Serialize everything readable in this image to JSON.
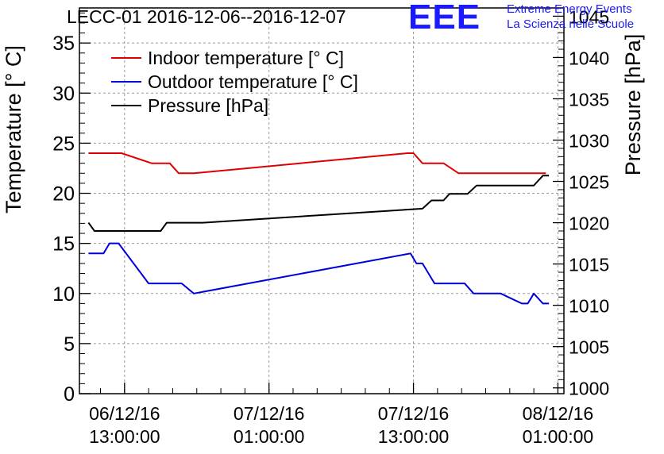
{
  "header": {
    "title": "LECC-01 2016-12-06--2016-12-07",
    "logo_text": "EEE",
    "logo_line1": "Extreme Energy Events",
    "logo_line2": "La Scienza nelle Scuole"
  },
  "colors": {
    "indoor": "#e00000",
    "outdoor": "#0000dd",
    "pressure": "#000000",
    "grid": "#999999",
    "logo": "#1a1aff"
  },
  "chart_data": {
    "type": "line",
    "title": "LECC-01 2016-12-06--2016-12-07",
    "ylabel": "Temperature [° C]",
    "y2label": "Pressure [hPa]",
    "ylim": [
      0,
      38.5
    ],
    "y2lim": [
      999.3,
      1046
    ],
    "yticks": [
      0,
      5,
      10,
      15,
      20,
      25,
      30,
      35
    ],
    "y2ticks": [
      1000,
      1005,
      1010,
      1015,
      1020,
      1025,
      1030,
      1035,
      1040,
      1045
    ],
    "xlim": [
      "2016-12-06 09:15",
      "2016-12-08 01:30"
    ],
    "xticks": [
      {
        "x": "2016-12-06 13:00",
        "label": [
          "06/12/16",
          "13:00:00"
        ]
      },
      {
        "x": "2016-12-07 01:00",
        "label": [
          "07/12/16",
          "01:00:00"
        ]
      },
      {
        "x": "2016-12-07 13:00",
        "label": [
          "07/12/16",
          "13:00:00"
        ]
      },
      {
        "x": "2016-12-08 01:00",
        "label": [
          "08/12/16",
          "01:00:00"
        ]
      }
    ],
    "grid": true,
    "legend_position": "top-left",
    "series": [
      {
        "name": "Indoor temperature [° C]",
        "axis": "left",
        "color": "#e00000",
        "points": [
          [
            "2016-12-06 10:00",
            24
          ],
          [
            "2016-12-06 12:45",
            24
          ],
          [
            "2016-12-06 15:15",
            23
          ],
          [
            "2016-12-06 16:45",
            23
          ],
          [
            "2016-12-06 17:30",
            22
          ],
          [
            "2016-12-06 18:45",
            22
          ],
          [
            "2016-12-07 12:30",
            24
          ],
          [
            "2016-12-07 13:00",
            24
          ],
          [
            "2016-12-07 13:45",
            23
          ],
          [
            "2016-12-07 15:30",
            23
          ],
          [
            "2016-12-07 16:45",
            22
          ],
          [
            "2016-12-08 00:00",
            22
          ]
        ]
      },
      {
        "name": "Outdoor temperature [° C]",
        "axis": "left",
        "color": "#0000dd",
        "points": [
          [
            "2016-12-06 10:00",
            14
          ],
          [
            "2016-12-06 11:15",
            14
          ],
          [
            "2016-12-06 11:45",
            15
          ],
          [
            "2016-12-06 12:30",
            15
          ],
          [
            "2016-12-06 15:00",
            11
          ],
          [
            "2016-12-06 17:45",
            11
          ],
          [
            "2016-12-06 18:45",
            10
          ],
          [
            "2016-12-07 12:45",
            14
          ],
          [
            "2016-12-07 13:15",
            13
          ],
          [
            "2016-12-07 13:45",
            13
          ],
          [
            "2016-12-07 14:45",
            11
          ],
          [
            "2016-12-07 17:15",
            11
          ],
          [
            "2016-12-07 18:00",
            10
          ],
          [
            "2016-12-07 20:15",
            10
          ],
          [
            "2016-12-07 22:00",
            9
          ],
          [
            "2016-12-07 22:30",
            9
          ],
          [
            "2016-12-07 23:00",
            10
          ],
          [
            "2016-12-07 23:45",
            9
          ],
          [
            "2016-12-08 00:15",
            9
          ]
        ]
      },
      {
        "name": "Pressure [hPa]",
        "axis": "right",
        "color": "#000000",
        "points": [
          [
            "2016-12-06 10:00",
            1020
          ],
          [
            "2016-12-06 10:30",
            1019
          ],
          [
            "2016-12-06 16:00",
            1019
          ],
          [
            "2016-12-06 16:30",
            1020
          ],
          [
            "2016-12-06 19:30",
            1020
          ],
          [
            "2016-12-07 13:45",
            1021.7
          ],
          [
            "2016-12-07 14:30",
            1022.7
          ],
          [
            "2016-12-07 15:30",
            1022.7
          ],
          [
            "2016-12-07 16:00",
            1023.5
          ],
          [
            "2016-12-07 17:30",
            1023.5
          ],
          [
            "2016-12-07 18:15",
            1024.5
          ],
          [
            "2016-12-07 23:00",
            1024.5
          ],
          [
            "2016-12-07 23:45",
            1025.7
          ],
          [
            "2016-12-08 00:15",
            1025.7
          ]
        ]
      }
    ]
  }
}
